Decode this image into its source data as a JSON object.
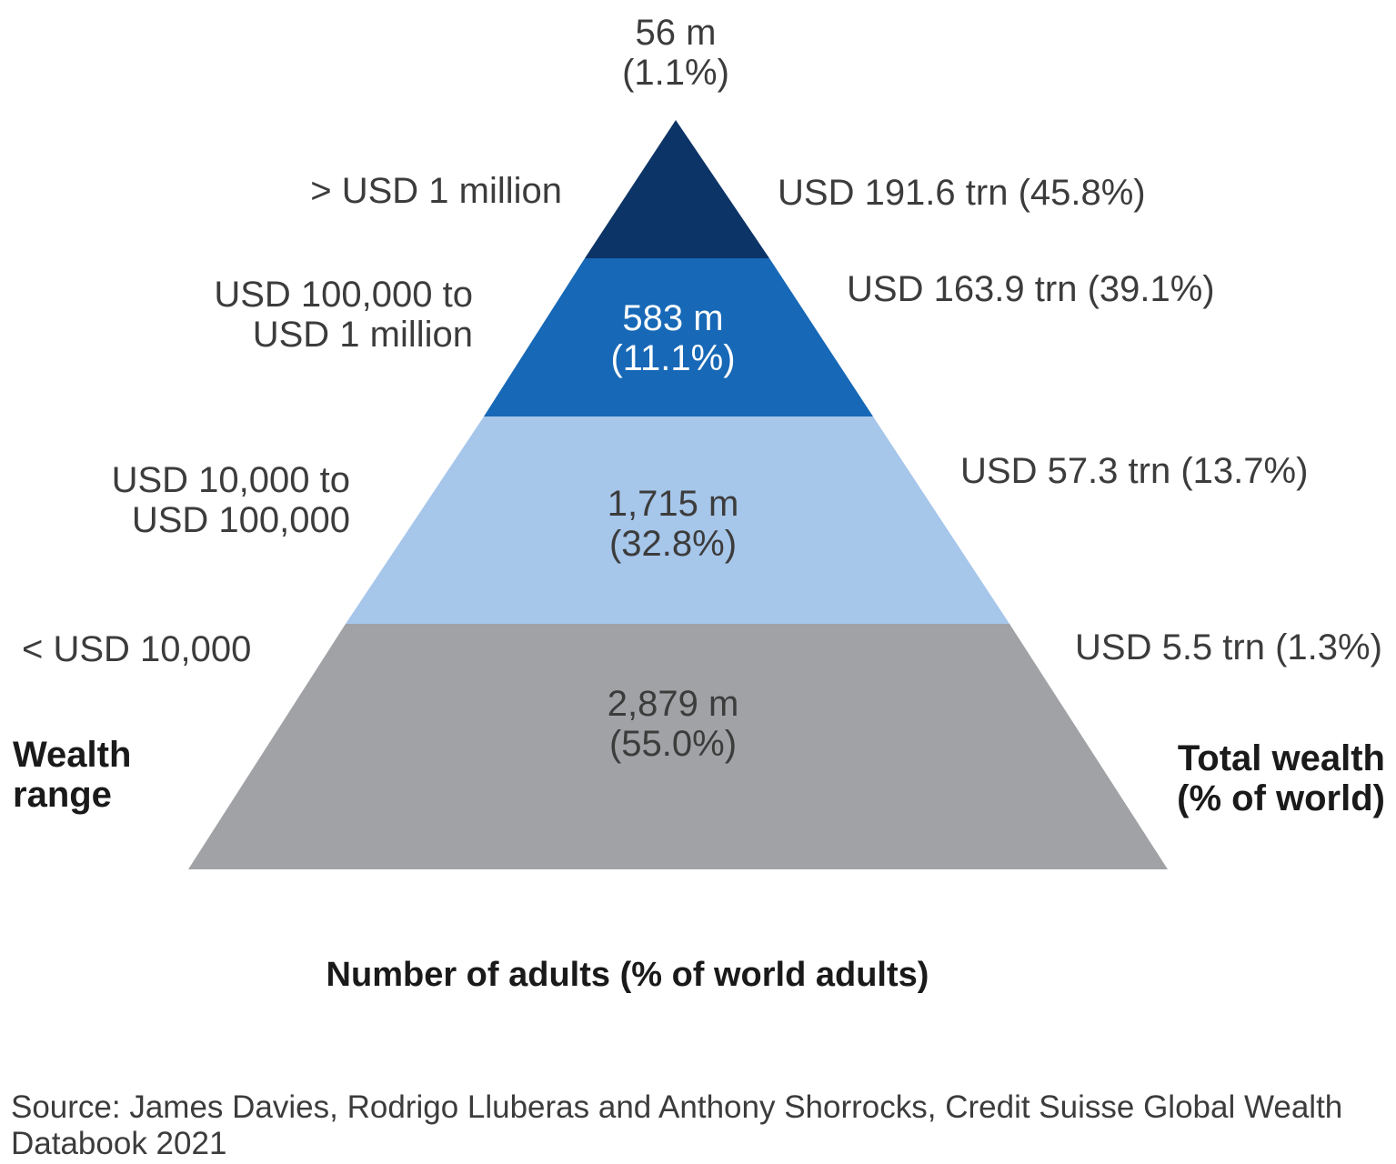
{
  "chart_data": {
    "type": "pyramid",
    "axis_label": "Number of adults (% of world adults)",
    "left_header": [
      "Wealth",
      "range"
    ],
    "right_header": [
      "Total wealth",
      "(% of world)"
    ],
    "tiers": [
      {
        "range_lines": [
          "> USD 1 million"
        ],
        "adults_millions": 56,
        "adults_label": "56 m",
        "adults_pct_label": "(1.1%)",
        "adults_pct": 1.1,
        "wealth_trn": 191.6,
        "wealth_pct": 45.8,
        "wealth_label": "USD 191.6 trn (45.8%)",
        "color": "#0d3466"
      },
      {
        "range_lines": [
          "USD 100,000 to",
          "USD 1 million"
        ],
        "adults_millions": 583,
        "adults_label": "583 m",
        "adults_pct_label": "(11.1%)",
        "adults_pct": 11.1,
        "wealth_trn": 163.9,
        "wealth_pct": 39.1,
        "wealth_label": "USD 163.9 trn (39.1%)",
        "color": "#1768b6"
      },
      {
        "range_lines": [
          "USD 10,000 to",
          "USD 100,000"
        ],
        "adults_millions": 1715,
        "adults_label": "1,715 m",
        "adults_pct_label": "(32.8%)",
        "adults_pct": 32.8,
        "wealth_trn": 57.3,
        "wealth_pct": 13.7,
        "wealth_label": "USD 57.3 trn (13.7%)",
        "color": "#a6c6ea"
      },
      {
        "range_lines": [
          "< USD 10,000"
        ],
        "adults_millions": 2879,
        "adults_label": "2,879 m",
        "adults_pct_label": "(55.0%)",
        "adults_pct": 55.0,
        "wealth_trn": 5.5,
        "wealth_pct": 1.3,
        "wealth_label": "USD 5.5 trn (1.3%)",
        "color": "#a0a2a5"
      }
    ]
  },
  "source": {
    "line1": "Source: James Davies, Rodrigo Lluberas and Anthony Shorrocks, Credit Suisse Global Wealth",
    "line2": "Databook 2021"
  }
}
